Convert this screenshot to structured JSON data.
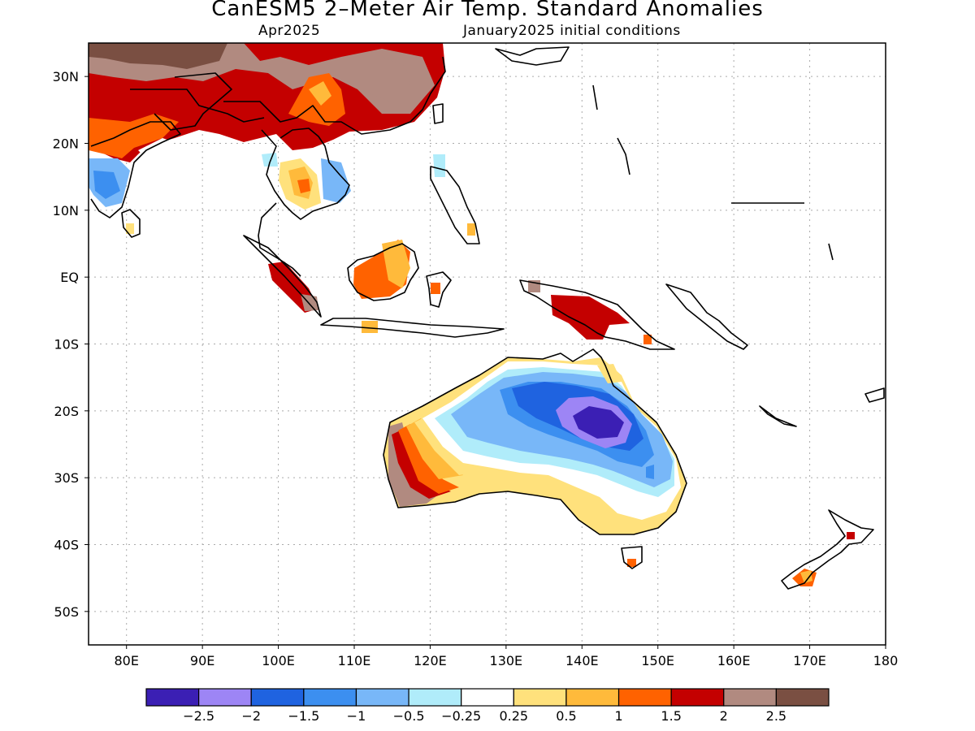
{
  "title": "CanESM5 2–Meter Air Temp. Standard Anomalies",
  "subtitle_left": "Apr2025",
  "subtitle_right": "January2025 initial conditions",
  "map": {
    "lon_range": [
      75,
      180
    ],
    "lat_range": [
      -55,
      35
    ],
    "lon_ticks": [
      {
        "v": 80,
        "label": "80E"
      },
      {
        "v": 90,
        "label": "90E"
      },
      {
        "v": 100,
        "label": "100E"
      },
      {
        "v": 110,
        "label": "110E"
      },
      {
        "v": 120,
        "label": "120E"
      },
      {
        "v": 130,
        "label": "130E"
      },
      {
        "v": 140,
        "label": "140E"
      },
      {
        "v": 150,
        "label": "150E"
      },
      {
        "v": 160,
        "label": "160E"
      },
      {
        "v": 170,
        "label": "170E"
      },
      {
        "v": 180,
        "label": "180"
      }
    ],
    "lat_ticks": [
      {
        "v": 30,
        "label": "30N"
      },
      {
        "v": 20,
        "label": "20N"
      },
      {
        "v": 10,
        "label": "10N"
      },
      {
        "v": 0,
        "label": "EQ"
      },
      {
        "v": -10,
        "label": "10S"
      },
      {
        "v": -20,
        "label": "20S"
      },
      {
        "v": -30,
        "label": "30S"
      },
      {
        "v": -40,
        "label": "40S"
      },
      {
        "v": -50,
        "label": "50S"
      }
    ],
    "grid": "dotted"
  },
  "colorbar": {
    "colors": [
      "#3b1fb4",
      "#9d85f5",
      "#1f63e0",
      "#3c8ff0",
      "#78b7f8",
      "#b0ecfa",
      "#ffffff",
      "#ffe17c",
      "#ffba3b",
      "#ff6200",
      "#c40000",
      "#b18a80",
      "#7a4f42"
    ],
    "labels": [
      "−2.5",
      "−2",
      "−1.5",
      "−1",
      "−0.5",
      "−0.25",
      "0.25",
      "0.5",
      "1",
      "1.5",
      "2",
      "2.5"
    ]
  }
}
